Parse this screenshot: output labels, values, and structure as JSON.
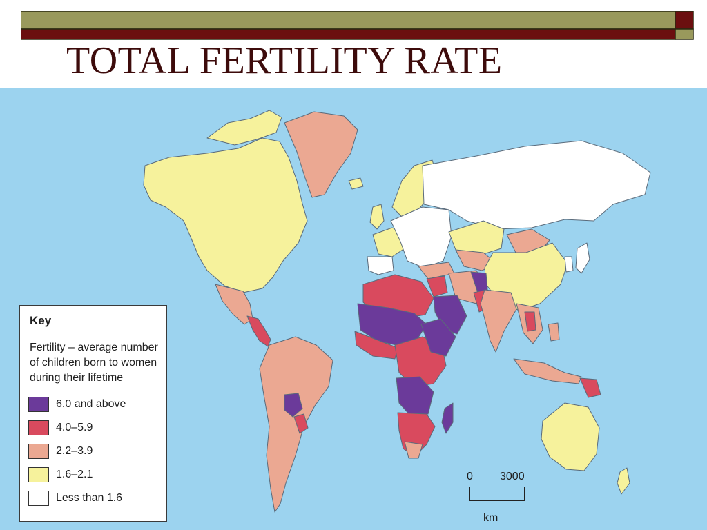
{
  "slide": {
    "title": "TOTAL FERTILITY RATE",
    "colors": {
      "olive": "#99995c",
      "maroon": "#6b0f0f",
      "title": "#3d0b0b",
      "ocean": "#9cd3ef"
    }
  },
  "map": {
    "key": {
      "title": "Key",
      "description": "Fertility – average number of children born to women during their lifetime",
      "items": [
        {
          "label": "6.0 and above",
          "color": "#6b3a9a"
        },
        {
          "label": "4.0–5.9",
          "color": "#d94a5e"
        },
        {
          "label": "2.2–3.9",
          "color": "#eba892"
        },
        {
          "label": "1.6–2.1",
          "color": "#f6f29c"
        },
        {
          "label": "Less than 1.6",
          "color": "#ffffff"
        }
      ]
    },
    "scale": {
      "zero": "0",
      "max": "3000",
      "unit": "km"
    }
  }
}
